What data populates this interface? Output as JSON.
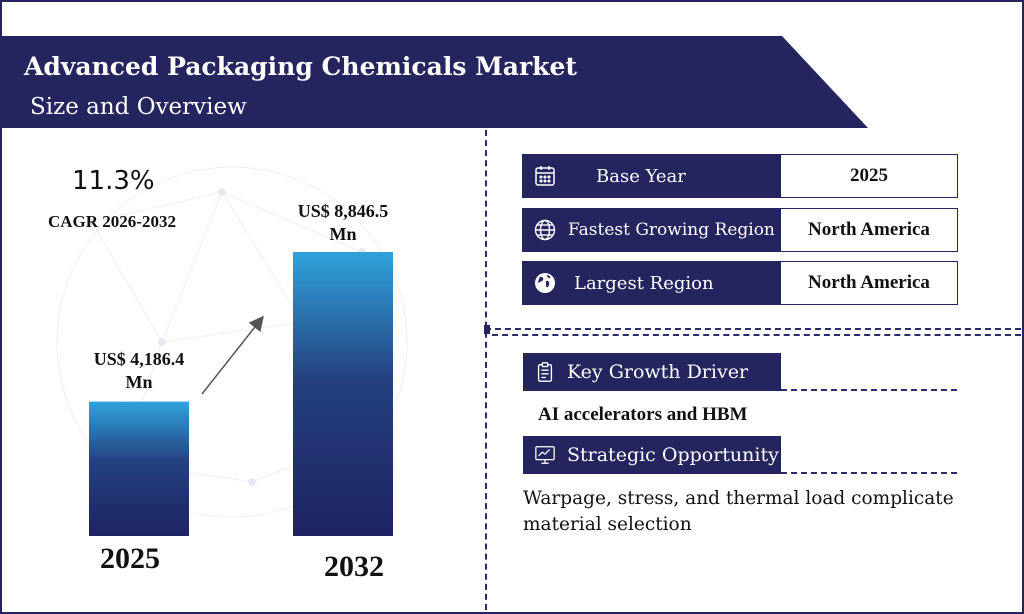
{
  "header": {
    "title": "Advanced Packaging Chemicals Market",
    "subtitle": "Size and Overview"
  },
  "colors": {
    "navy": "#24245e",
    "bar_top": "#2fa3dc",
    "bar_bottom": "#1e2363",
    "text": "#111111"
  },
  "cagr": {
    "value": "11.3%",
    "label": "CAGR 2026-2032"
  },
  "chart_data": {
    "type": "bar",
    "categories": [
      "2025",
      "2032"
    ],
    "values": [
      4186.4,
      8846.5
    ],
    "value_labels": [
      "US$ 4,186.4 Mn",
      "US$ 8,846.5 Mn"
    ],
    "value_labels_line1": [
      "US$ 4,186.4",
      "US$ 8,846.5"
    ],
    "value_labels_line2": [
      "Mn",
      "Mn"
    ],
    "unit": "US$ Mn",
    "title": "",
    "xlabel": "",
    "ylabel": "",
    "grid": false,
    "legend": "none"
  },
  "info": [
    {
      "icon": "calendar-icon",
      "key": "Base Year",
      "value": "2025"
    },
    {
      "icon": "globe-grid-icon",
      "key": "Fastest Growing Region",
      "value": "North America"
    },
    {
      "icon": "globe-icon",
      "key": "Largest Region",
      "value": "North America"
    }
  ],
  "driver": {
    "icon": "clipboard-icon",
    "heading": "Key Growth Driver",
    "text": "AI accelerators and HBM"
  },
  "opportunity": {
    "icon": "strategy-chart-icon",
    "heading": "Strategic Opportunity",
    "text": "Warpage, stress, and thermal load complicate material selection"
  }
}
